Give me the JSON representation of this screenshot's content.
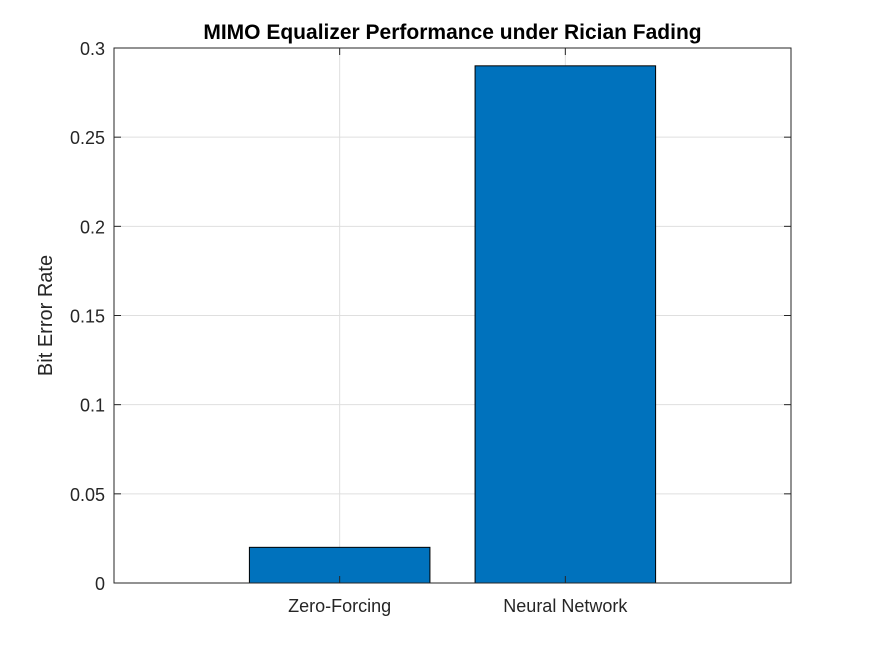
{
  "chart_data": {
    "type": "bar",
    "title": "MIMO Equalizer Performance under Rician Fading",
    "xlabel": "",
    "ylabel": "Bit Error Rate",
    "categories": [
      "Zero-Forcing",
      "Neural Network"
    ],
    "values": [
      0.02,
      0.29
    ],
    "ylim": [
      0,
      0.3
    ],
    "yticks": [
      0,
      0.05,
      0.1,
      0.15,
      0.2,
      0.25,
      0.3
    ],
    "ytick_labels": [
      "0",
      "0.05",
      "0.1",
      "0.15",
      "0.2",
      "0.25",
      "0.3"
    ],
    "grid": true,
    "legend": "none",
    "bar_color": "#0072BD",
    "bar_edge_color": "#000000",
    "grid_color": "#DFDFDF",
    "axis_color": "#262626"
  }
}
